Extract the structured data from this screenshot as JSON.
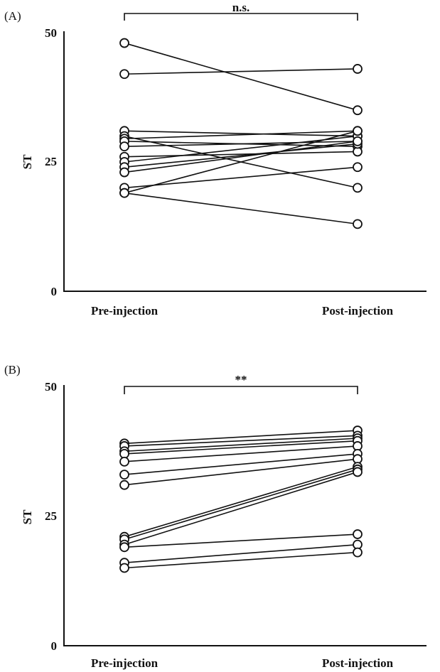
{
  "chart_data": [
    {
      "type": "line",
      "panel_label": "(A)",
      "ylabel": "ST",
      "xlabel": "",
      "categories": [
        "Pre-injection",
        "Post-injection"
      ],
      "ylim": [
        0,
        50
      ],
      "yticks": [
        "0",
        "25",
        "50"
      ],
      "grid": false,
      "significance": "n.s.",
      "series": [
        {
          "values": [
            48,
            35
          ]
        },
        {
          "values": [
            42,
            43
          ]
        },
        {
          "values": [
            31,
            30
          ]
        },
        {
          "values": [
            30,
            20
          ]
        },
        {
          "values": [
            29.5,
            31
          ]
        },
        {
          "values": [
            29,
            28
          ]
        },
        {
          "values": [
            28,
            29
          ]
        },
        {
          "values": [
            26,
            27
          ]
        },
        {
          "values": [
            25,
            30
          ]
        },
        {
          "values": [
            24,
            28.5
          ]
        },
        {
          "values": [
            23,
            29
          ]
        },
        {
          "values": [
            20,
            24
          ]
        },
        {
          "values": [
            19,
            31
          ]
        },
        {
          "values": [
            19,
            13
          ]
        }
      ]
    },
    {
      "type": "line",
      "panel_label": "(B)",
      "ylabel": "ST",
      "xlabel": "",
      "categories": [
        "Pre-injection",
        "Post-injection"
      ],
      "ylim": [
        0,
        50
      ],
      "yticks": [
        "0",
        "25",
        "50"
      ],
      "grid": false,
      "significance": "**",
      "series": [
        {
          "values": [
            39,
            41.5
          ]
        },
        {
          "values": [
            38.5,
            40.5
          ]
        },
        {
          "values": [
            37.5,
            40
          ]
        },
        {
          "values": [
            37,
            39.5
          ]
        },
        {
          "values": [
            35.5,
            38.5
          ]
        },
        {
          "values": [
            33,
            37
          ]
        },
        {
          "values": [
            31,
            36
          ]
        },
        {
          "values": [
            21,
            34.5
          ]
        },
        {
          "values": [
            20.5,
            34
          ]
        },
        {
          "values": [
            19.5,
            33.5
          ]
        },
        {
          "values": [
            19,
            21.5
          ]
        },
        {
          "values": [
            16,
            19.5
          ]
        },
        {
          "values": [
            15,
            18
          ]
        }
      ]
    }
  ]
}
